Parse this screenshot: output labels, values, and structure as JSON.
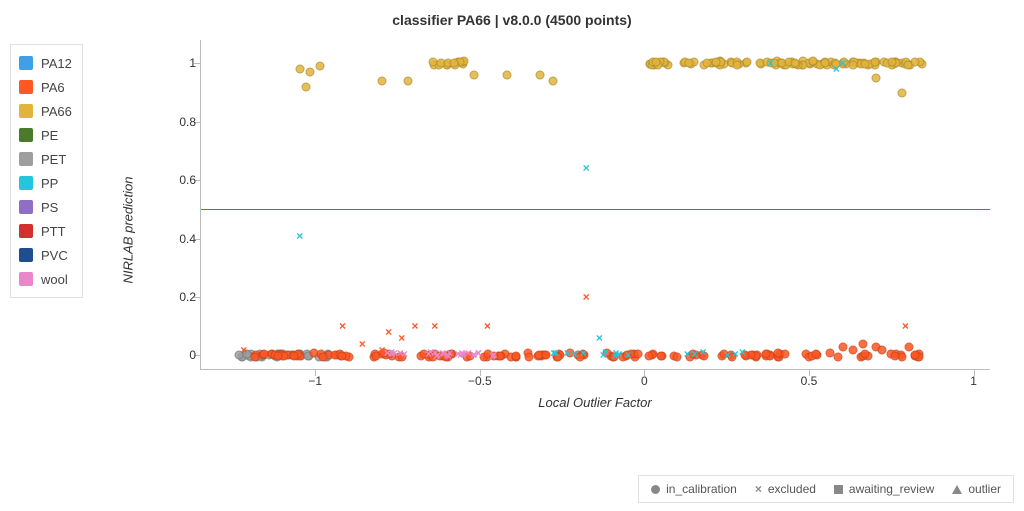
{
  "title": "classifier PA66 | v8.0.0 (4500 points)",
  "xlabel": "Local Outlier Factor",
  "ylabel": "NIRLAB prediction",
  "xlim": [
    -1.35,
    1.05
  ],
  "ylim": [
    -0.05,
    1.08
  ],
  "xticks": [
    -1,
    -0.5,
    0,
    0.5,
    1
  ],
  "yticks": [
    0,
    0.2,
    0.4,
    0.6,
    0.8,
    1
  ],
  "xtick_labels": [
    "−1",
    "−0.5",
    "0",
    "0.5",
    "1"
  ],
  "ytick_labels": [
    "0",
    "0.2",
    "0.4",
    "0.6",
    "0.8",
    "1"
  ],
  "hline": {
    "y": 0.5,
    "color": "#e53935"
  },
  "plot_bg": "#ffffff",
  "axis_color": "#bbbbbb",
  "title_fontsize": 14,
  "label_fontsize": 13,
  "tick_fontsize": 12,
  "categories": [
    {
      "name": "PA12",
      "color": "#3fa0e6"
    },
    {
      "name": "PA6",
      "color": "#ff5722"
    },
    {
      "name": "PA66",
      "color": "#e2b43b"
    },
    {
      "name": "PE",
      "color": "#4a7a2a"
    },
    {
      "name": "PET",
      "color": "#9e9e9e"
    },
    {
      "name": "PP",
      "color": "#26c6da"
    },
    {
      "name": "PS",
      "color": "#8e6fc1"
    },
    {
      "name": "PTT",
      "color": "#d32f2f"
    },
    {
      "name": "PVC",
      "color": "#1f4e8c"
    },
    {
      "name": "wool",
      "color": "#e887c9"
    }
  ],
  "marker_legend": [
    {
      "marker": "circle",
      "label": "in_calibration"
    },
    {
      "marker": "cross",
      "label": "excluded"
    },
    {
      "marker": "square",
      "label": "awaiting_review"
    },
    {
      "marker": "triangle",
      "label": "outlier"
    }
  ],
  "dense_bands": [
    {
      "cat": "PET",
      "marker": "circle",
      "y": 0.0,
      "x_from": -1.25,
      "x_to": -0.95,
      "n": 40
    },
    {
      "cat": "PA6",
      "marker": "circle",
      "y": 0.0,
      "x_from": -1.2,
      "x_to": 0.85,
      "n": 150
    },
    {
      "cat": "wool",
      "marker": "cross",
      "y": 0.005,
      "x_from": -0.8,
      "x_to": -0.45,
      "n": 30
    },
    {
      "cat": "PP",
      "marker": "cross",
      "y": 0.005,
      "x_from": -0.3,
      "x_to": 0.3,
      "n": 18
    },
    {
      "cat": "PA66",
      "marker": "circle",
      "y": 1.0,
      "x_from": 0.0,
      "x_to": 0.85,
      "n": 110
    },
    {
      "cat": "PA66",
      "marker": "circle",
      "y": 1.0,
      "x_from": -0.65,
      "x_to": -0.55,
      "n": 12
    }
  ],
  "points": [
    {
      "cat": "PA66",
      "marker": "circle",
      "x": -1.05,
      "y": 0.98
    },
    {
      "cat": "PA66",
      "marker": "circle",
      "x": -1.02,
      "y": 0.97
    },
    {
      "cat": "PA66",
      "marker": "circle",
      "x": -1.03,
      "y": 0.92
    },
    {
      "cat": "PA66",
      "marker": "circle",
      "x": -0.99,
      "y": 0.99
    },
    {
      "cat": "PA66",
      "marker": "circle",
      "x": -0.8,
      "y": 0.94
    },
    {
      "cat": "PA66",
      "marker": "circle",
      "x": -0.72,
      "y": 0.94
    },
    {
      "cat": "PA66",
      "marker": "circle",
      "x": -0.62,
      "y": 1.0
    },
    {
      "cat": "PA66",
      "marker": "circle",
      "x": -0.6,
      "y": 1.0
    },
    {
      "cat": "PA66",
      "marker": "circle",
      "x": -0.58,
      "y": 1.0
    },
    {
      "cat": "PA66",
      "marker": "circle",
      "x": -0.52,
      "y": 0.96
    },
    {
      "cat": "PA66",
      "marker": "circle",
      "x": -0.42,
      "y": 0.96
    },
    {
      "cat": "PA66",
      "marker": "circle",
      "x": -0.32,
      "y": 0.96
    },
    {
      "cat": "PA66",
      "marker": "circle",
      "x": -0.28,
      "y": 0.94
    },
    {
      "cat": "PA66",
      "marker": "circle",
      "x": 0.78,
      "y": 0.9
    },
    {
      "cat": "PA66",
      "marker": "circle",
      "x": 0.7,
      "y": 0.95
    },
    {
      "cat": "PP",
      "marker": "cross",
      "x": -1.05,
      "y": 0.41
    },
    {
      "cat": "PP",
      "marker": "cross",
      "x": -0.18,
      "y": 0.64
    },
    {
      "cat": "PP",
      "marker": "cross",
      "x": 0.38,
      "y": 1.0
    },
    {
      "cat": "PP",
      "marker": "cross",
      "x": 0.58,
      "y": 0.98
    },
    {
      "cat": "PP",
      "marker": "cross",
      "x": 0.6,
      "y": 1.0
    },
    {
      "cat": "PP",
      "marker": "cross",
      "x": -0.14,
      "y": 0.06
    },
    {
      "cat": "PA6",
      "marker": "cross",
      "x": -1.22,
      "y": 0.02
    },
    {
      "cat": "PA6",
      "marker": "cross",
      "x": -0.92,
      "y": 0.1
    },
    {
      "cat": "PA6",
      "marker": "cross",
      "x": -0.86,
      "y": 0.04
    },
    {
      "cat": "PA6",
      "marker": "cross",
      "x": -0.8,
      "y": 0.02
    },
    {
      "cat": "PA6",
      "marker": "cross",
      "x": -0.78,
      "y": 0.08
    },
    {
      "cat": "PA6",
      "marker": "cross",
      "x": -0.74,
      "y": 0.06
    },
    {
      "cat": "PA6",
      "marker": "cross",
      "x": -0.7,
      "y": 0.1
    },
    {
      "cat": "PA6",
      "marker": "cross",
      "x": -0.64,
      "y": 0.1
    },
    {
      "cat": "PA6",
      "marker": "cross",
      "x": -0.48,
      "y": 0.1
    },
    {
      "cat": "PA6",
      "marker": "cross",
      "x": -0.18,
      "y": 0.2
    },
    {
      "cat": "PA6",
      "marker": "cross",
      "x": 0.79,
      "y": 0.1
    },
    {
      "cat": "PA6",
      "marker": "circle",
      "x": 0.6,
      "y": 0.03
    },
    {
      "cat": "PA6",
      "marker": "circle",
      "x": 0.63,
      "y": 0.02
    },
    {
      "cat": "PA6",
      "marker": "circle",
      "x": 0.66,
      "y": 0.04
    },
    {
      "cat": "PA6",
      "marker": "circle",
      "x": 0.7,
      "y": 0.03
    },
    {
      "cat": "PA6",
      "marker": "circle",
      "x": 0.72,
      "y": 0.02
    },
    {
      "cat": "PA6",
      "marker": "circle",
      "x": 0.8,
      "y": 0.03
    },
    {
      "cat": "PA6",
      "marker": "circle",
      "x": 0.82,
      "y": 0.0
    }
  ]
}
